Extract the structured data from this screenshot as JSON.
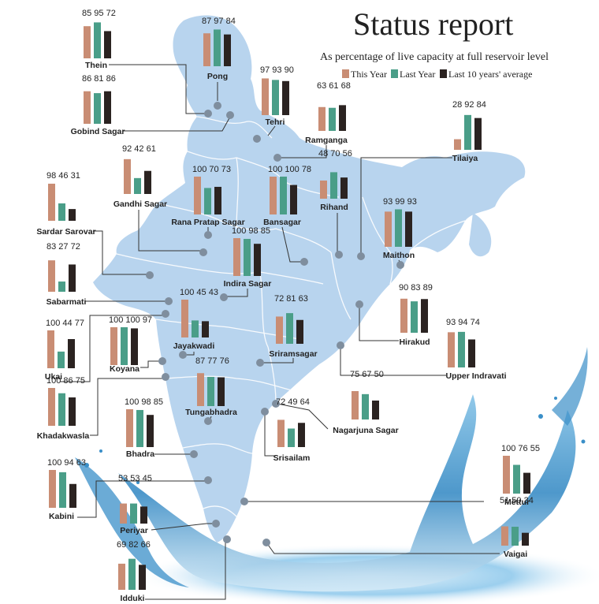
{
  "header": {
    "title": "Status report",
    "subtitle": "As percentage of live capacity at full reservoir level"
  },
  "colors": {
    "this_year": "#c98d74",
    "last_year": "#4a9e88",
    "avg": "#2b2321",
    "map": "#b8d4ee",
    "map_border": "#ffffff",
    "marker": "#7f8e9e",
    "leader": "#333333",
    "water_deep": "#2f7fb8",
    "water_light": "#9fd0ee"
  },
  "chart_data": {
    "type": "bar",
    "title": "Status report",
    "subtitle": "As percentage of live capacity at full reservoir level",
    "series_names": [
      "This Year",
      "Last Year",
      "Last 10 years' average"
    ],
    "ylim": [
      0,
      100
    ],
    "reservoirs": [
      {
        "name": "Thein",
        "values": [
          85,
          95,
          72
        ],
        "labels": [
          "85",
          "95",
          "72"
        ]
      },
      {
        "name": "Pong",
        "values": [
          87,
          97,
          84
        ],
        "labels": [
          "87",
          "97",
          "84"
        ]
      },
      {
        "name": "Gobind Sagar",
        "values": [
          86,
          81,
          86
        ],
        "labels": [
          "86",
          "81",
          "86"
        ]
      },
      {
        "name": "Tehri",
        "values": [
          97,
          93,
          90
        ],
        "labels": [
          "97",
          "93",
          "90"
        ]
      },
      {
        "name": "Ramganga",
        "values": [
          63,
          61,
          68
        ],
        "labels": [
          "63",
          "61",
          "68"
        ]
      },
      {
        "name": "Tilaiya",
        "values": [
          28,
          92,
          84
        ],
        "labels": [
          "28",
          "92",
          "84"
        ]
      },
      {
        "name": "Gandhi Sagar",
        "values": [
          92,
          42,
          61
        ],
        "labels": [
          "92",
          "42",
          "61"
        ]
      },
      {
        "name": "Rana Pratap Sagar",
        "values": [
          100,
          70,
          73
        ],
        "labels": [
          "100",
          "70",
          "73"
        ]
      },
      {
        "name": "Bansagar",
        "values": [
          100,
          100,
          78
        ],
        "labels": [
          "100",
          "100",
          "78"
        ]
      },
      {
        "name": "Rihand",
        "values": [
          48,
          70,
          56
        ],
        "labels": [
          "48",
          "70",
          "56"
        ]
      },
      {
        "name": "Sardar Sarovar",
        "values": [
          98,
          46,
          31
        ],
        "labels": [
          "98",
          "46",
          "31"
        ]
      },
      {
        "name": "Maithon",
        "values": [
          93,
          99,
          93
        ],
        "labels": [
          "93",
          "99",
          "93"
        ]
      },
      {
        "name": "Indira Sagar",
        "values": [
          100,
          98,
          85
        ],
        "labels": [
          "100",
          "98",
          "85"
        ]
      },
      {
        "name": "Sabarmati",
        "values": [
          83,
          27,
          72
        ],
        "labels": [
          "83",
          "27",
          "72"
        ]
      },
      {
        "name": "Jayakwadi",
        "values": [
          100,
          45,
          43
        ],
        "labels": [
          "100",
          "45",
          "43"
        ]
      },
      {
        "name": "Sriramsagar",
        "values": [
          72,
          81,
          63
        ],
        "labels": [
          "72",
          "81",
          "63"
        ]
      },
      {
        "name": "Hirakud",
        "values": [
          90,
          83,
          89
        ],
        "labels": [
          "90",
          "83",
          "89"
        ]
      },
      {
        "name": "Ukai",
        "values": [
          100,
          44,
          77
        ],
        "labels": [
          "100",
          "44",
          "77"
        ]
      },
      {
        "name": "Koyana",
        "values": [
          100,
          100,
          97
        ],
        "labels": [
          "100",
          "100",
          "97"
        ]
      },
      {
        "name": "Upper Indravati",
        "values": [
          93,
          94,
          74
        ],
        "labels": [
          "93",
          "94",
          "74"
        ]
      },
      {
        "name": "Khadakwasla",
        "values": [
          100,
          86,
          75
        ],
        "labels": [
          "100",
          "86",
          "75"
        ]
      },
      {
        "name": "Tungabhadra",
        "values": [
          87,
          77,
          76
        ],
        "labels": [
          "87",
          "77",
          "76"
        ]
      },
      {
        "name": "Nagarjuna Sagar",
        "values": [
          75,
          67,
          50
        ],
        "labels": [
          "75",
          "67",
          "50"
        ]
      },
      {
        "name": "Bhadra",
        "values": [
          100,
          98,
          85
        ],
        "labels": [
          "100",
          "98",
          "85"
        ]
      },
      {
        "name": "Srisailam",
        "values": [
          72,
          49,
          64
        ],
        "labels": [
          "72",
          "49",
          "64"
        ]
      },
      {
        "name": "Kabini",
        "values": [
          100,
          94,
          63
        ],
        "labels": [
          "100",
          "94",
          "63"
        ]
      },
      {
        "name": "Mettur",
        "values": [
          100,
          76,
          55
        ],
        "labels": [
          "100",
          "76",
          "55"
        ]
      },
      {
        "name": "Periyar",
        "values": [
          53,
          53,
          45
        ],
        "labels": [
          "53",
          "53",
          "45"
        ]
      },
      {
        "name": "Vaigai",
        "values": [
          51,
          50,
          34
        ],
        "labels": [
          "51",
          "50",
          "34"
        ]
      },
      {
        "name": "Idduki",
        "values": [
          69,
          82,
          66
        ],
        "labels": [
          "69",
          "82",
          "66"
        ]
      }
    ]
  }
}
